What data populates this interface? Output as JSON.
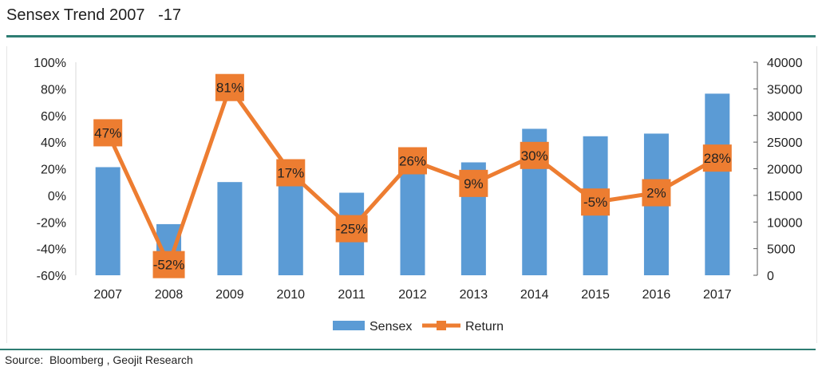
{
  "header": {
    "title": "Sensex Trend 2007   -17"
  },
  "footer": {
    "source": "Source:  Bloomberg , Geojit Research"
  },
  "chart_data": {
    "type": "bar",
    "categories": [
      "2007",
      "2008",
      "2009",
      "2010",
      "2011",
      "2012",
      "2013",
      "2014",
      "2015",
      "2016",
      "2017"
    ],
    "series": [
      {
        "name": "Sensex",
        "kind": "bar",
        "axis": "right",
        "color": "#5b9bd5",
        "values": [
          20300,
          9600,
          17500,
          20500,
          15500,
          19400,
          21200,
          27500,
          26100,
          26600,
          34100
        ]
      },
      {
        "name": "Return",
        "kind": "line",
        "axis": "left",
        "color": "#ed7d31",
        "values": [
          47,
          -52,
          81,
          17,
          -25,
          26,
          9,
          30,
          -5,
          2,
          28
        ],
        "data_labels": [
          "47%",
          "-52%",
          "81%",
          "17%",
          "-25%",
          "26%",
          "9%",
          "30%",
          "-5%",
          "2%",
          "28%"
        ]
      }
    ],
    "y_left": {
      "range": [
        -60,
        100
      ],
      "tick_labels": [
        "-60%",
        "-40%",
        "-20%",
        "0%",
        "20%",
        "40%",
        "60%",
        "80%",
        "100%"
      ],
      "tick_values": [
        -60,
        -40,
        -20,
        0,
        20,
        40,
        60,
        80,
        100
      ]
    },
    "y_right": {
      "range": [
        0,
        40000
      ],
      "tick_labels": [
        "0",
        "5000",
        "10000",
        "15000",
        "20000",
        "25000",
        "30000",
        "35000",
        "40000"
      ],
      "tick_values": [
        0,
        5000,
        10000,
        15000,
        20000,
        25000,
        30000,
        35000,
        40000
      ]
    },
    "grid": false,
    "legend": {
      "placement": "bottom-center",
      "entries": [
        "Sensex",
        "Return"
      ]
    }
  }
}
